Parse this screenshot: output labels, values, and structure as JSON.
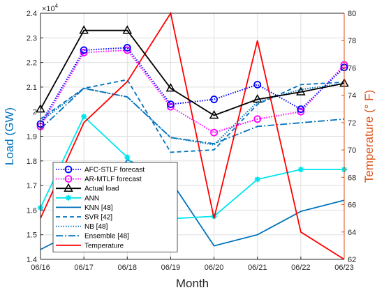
{
  "chart_data": {
    "type": "line",
    "x": [
      "06/16",
      "06/17",
      "06/18",
      "06/19",
      "06/20",
      "06/21",
      "06/22",
      "06/23"
    ],
    "xlabel": "Month",
    "ylabel_left": "Load (GW)",
    "ylabel_right": "Temperature (° F)",
    "left_multiplier": "×10",
    "left_multiplier_exp": "4",
    "ylim_left": [
      14000,
      24000
    ],
    "yticks_left": [
      "1.4",
      "1.5",
      "1.6",
      "1.7",
      "1.8",
      "1.9",
      "2",
      "2.1",
      "2.2",
      "2.3",
      "2.4"
    ],
    "ylim_right": [
      62,
      80
    ],
    "yticks_right": [
      "62",
      "64",
      "66",
      "68",
      "70",
      "72",
      "74",
      "76",
      "78",
      "80"
    ],
    "grid": true,
    "legend_position": "bottom-left",
    "series": [
      {
        "name": "AFC-STLF forecast",
        "axis": "left",
        "color": "#0000FF",
        "dash": "1.5,2",
        "marker": "circle",
        "values": [
          19500,
          22500,
          22600,
          20300,
          20500,
          21100,
          20100,
          21800
        ]
      },
      {
        "name": "AR-MTLF forecast",
        "axis": "left",
        "color": "#FF00FF",
        "dash": "1.5,2",
        "marker": "circle",
        "values": [
          19400,
          22400,
          22500,
          20200,
          19150,
          19700,
          20000,
          21900
        ]
      },
      {
        "name": "Actual load",
        "axis": "left",
        "color": "#000000",
        "dash": "",
        "marker": "triangle",
        "values": [
          20100,
          23300,
          23300,
          20950,
          19850,
          20500,
          20800,
          21150
        ]
      },
      {
        "name": "ANN",
        "axis": "left",
        "color": "#00E5EE",
        "dash": "",
        "marker": "asterisk",
        "values": [
          16100,
          19800,
          18150,
          15650,
          15750,
          17250,
          17650,
          17650
        ]
      },
      {
        "name": "KNN [48]",
        "axis": "left",
        "color": "#0072BD",
        "dash": "",
        "marker": "",
        "values": [
          14400,
          15300,
          18050,
          17200,
          14550,
          15000,
          15950,
          16400
        ]
      },
      {
        "name": "SVR [42]",
        "axis": "left",
        "color": "#0072BD",
        "dash": "6,4",
        "marker": "",
        "values": [
          19700,
          20950,
          21300,
          18350,
          18450,
          20300,
          21100,
          21200
        ]
      },
      {
        "name": "NB [48]",
        "axis": "left",
        "color": "#0072BD",
        "dash": "1.5,2",
        "marker": "",
        "values": [
          19600,
          20950,
          20600,
          18950,
          18650,
          20400,
          20900,
          21150
        ]
      },
      {
        "name": "Ensemble [48]",
        "axis": "left",
        "color": "#0072BD",
        "dash": "10,3,2,3",
        "marker": "",
        "values": [
          19300,
          20950,
          20600,
          18950,
          18700,
          19400,
          19550,
          19700
        ]
      },
      {
        "name": "Temperature",
        "axis": "right",
        "color": "#FF0000",
        "dash": "",
        "marker": "",
        "values": [
          65,
          72,
          75,
          80,
          65,
          78,
          64,
          62
        ]
      }
    ]
  }
}
